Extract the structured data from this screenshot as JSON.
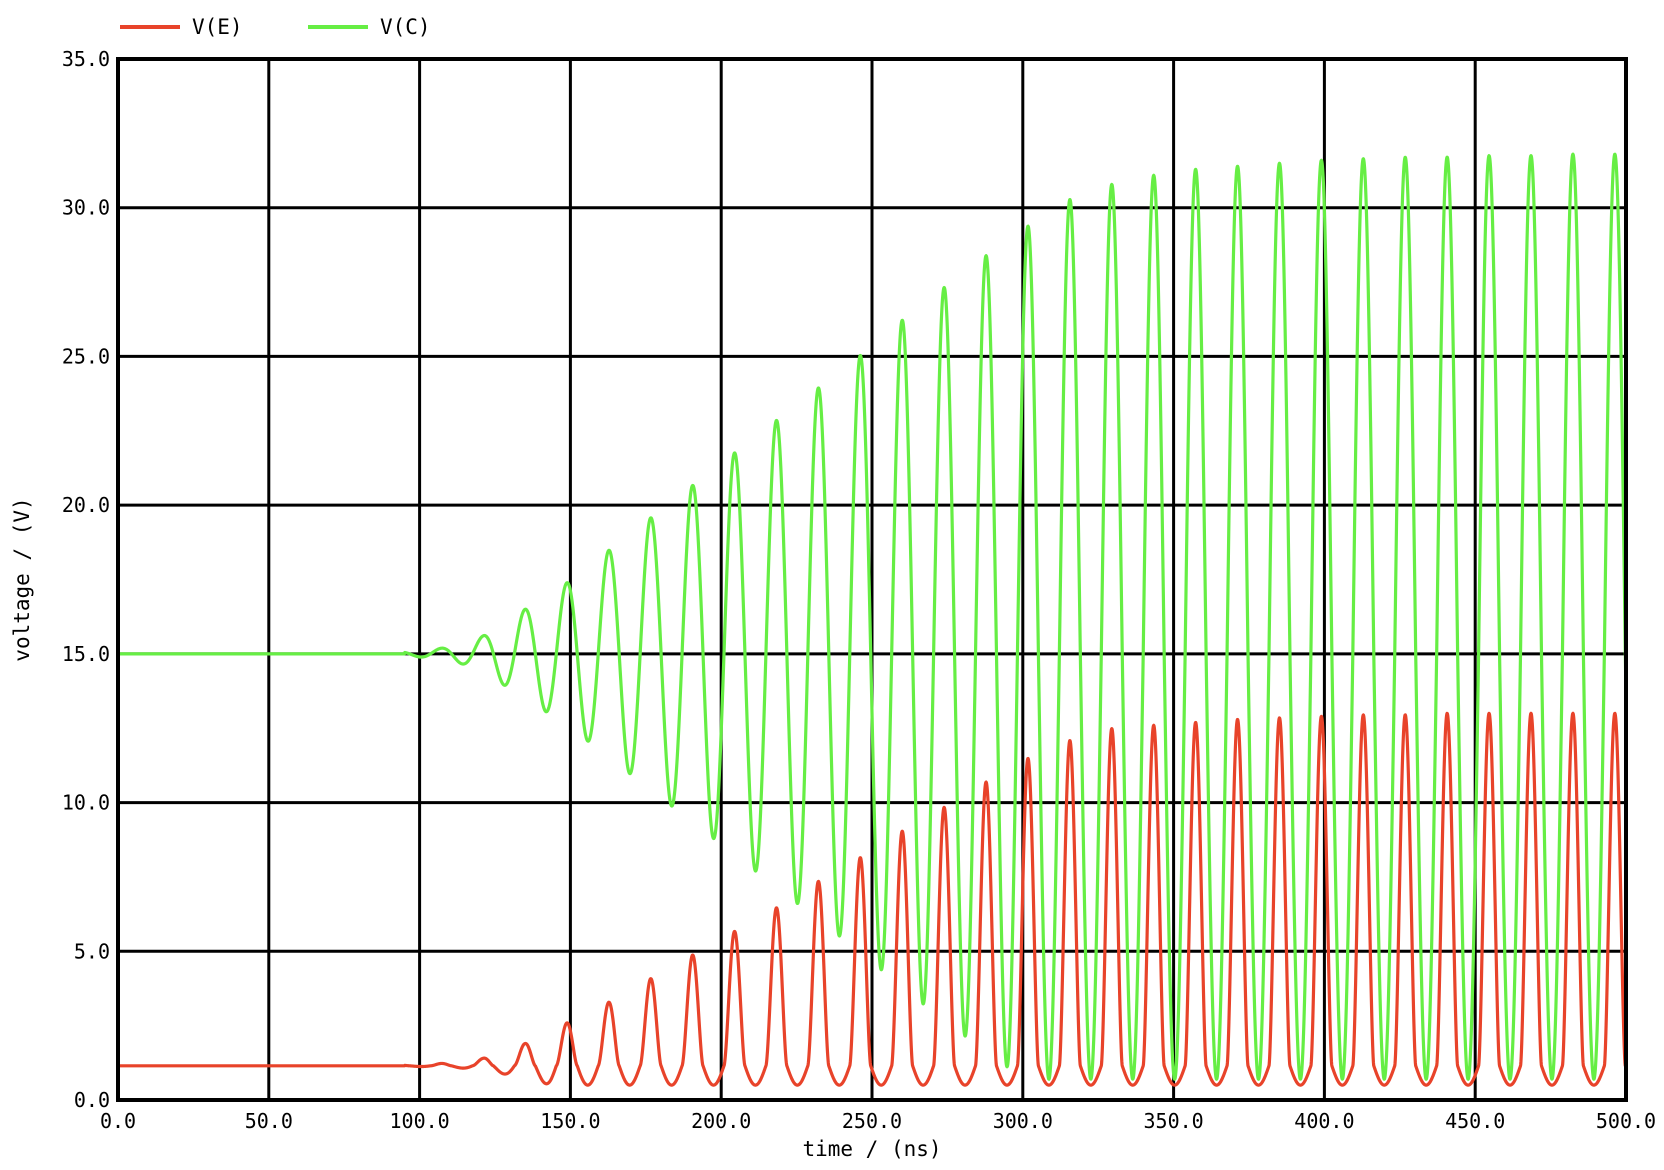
{
  "chart_data": {
    "type": "line",
    "title": "",
    "xlabel": "time / (ns)",
    "ylabel": "voltage / (V)",
    "xlim": [
      0,
      500
    ],
    "ylim": [
      0,
      35
    ],
    "grid": true,
    "legend": "top-left",
    "x_ticks": [
      "0.0",
      "50.0",
      "100.0",
      "150.0",
      "200.0",
      "250.0",
      "300.0",
      "350.0",
      "400.0",
      "450.0",
      "500.0"
    ],
    "y_ticks": [
      "0.0",
      "5.0",
      "10.0",
      "15.0",
      "20.0",
      "25.0",
      "30.0",
      "35.0"
    ],
    "oscillation": {
      "onset_ns": 95,
      "period_ns": 13.9,
      "growth_time_constant_ns": 90
    },
    "series": [
      {
        "name": "V(E)",
        "color": "#e8432a",
        "baseline_v": 1.15,
        "min_v": 0.5,
        "max_v": 13.0,
        "peaks": [
          {
            "x": 121,
            "y": 1.4
          },
          {
            "x": 135,
            "y": 1.9
          },
          {
            "x": 149,
            "y": 2.6
          },
          {
            "x": 163,
            "y": 3.3
          },
          {
            "x": 177,
            "y": 4.1
          },
          {
            "x": 191,
            "y": 4.9
          },
          {
            "x": 205,
            "y": 5.7
          },
          {
            "x": 219,
            "y": 6.5
          },
          {
            "x": 233,
            "y": 7.4
          },
          {
            "x": 247,
            "y": 8.2
          },
          {
            "x": 261,
            "y": 9.1
          },
          {
            "x": 275,
            "y": 9.9
          },
          {
            "x": 288,
            "y": 10.7
          },
          {
            "x": 302,
            "y": 11.5
          },
          {
            "x": 316,
            "y": 12.1
          },
          {
            "x": 330,
            "y": 12.5
          },
          {
            "x": 344,
            "y": 12.6
          },
          {
            "x": 358,
            "y": 12.7
          },
          {
            "x": 372,
            "y": 12.8
          },
          {
            "x": 386,
            "y": 12.85
          },
          {
            "x": 400,
            "y": 12.9
          },
          {
            "x": 414,
            "y": 12.95
          },
          {
            "x": 428,
            "y": 12.95
          },
          {
            "x": 441,
            "y": 13.0
          },
          {
            "x": 455,
            "y": 13.0
          },
          {
            "x": 469,
            "y": 13.0
          },
          {
            "x": 483,
            "y": 13.0
          },
          {
            "x": 497,
            "y": 13.0
          }
        ]
      },
      {
        "name": "V(C)",
        "color": "#66ee44",
        "baseline_v": 15.0,
        "min_v": 0.7,
        "max_v": 31.8,
        "peaks": [
          {
            "x": 121,
            "y": 15.6
          },
          {
            "x": 135,
            "y": 16.5
          },
          {
            "x": 149,
            "y": 17.4
          },
          {
            "x": 163,
            "y": 18.5
          },
          {
            "x": 177,
            "y": 19.6
          },
          {
            "x": 191,
            "y": 20.7
          },
          {
            "x": 205,
            "y": 21.8
          },
          {
            "x": 219,
            "y": 22.9
          },
          {
            "x": 233,
            "y": 24.0
          },
          {
            "x": 247,
            "y": 25.1
          },
          {
            "x": 261,
            "y": 26.3
          },
          {
            "x": 275,
            "y": 27.4
          },
          {
            "x": 288,
            "y": 28.4
          },
          {
            "x": 302,
            "y": 29.4
          },
          {
            "x": 316,
            "y": 30.3
          },
          {
            "x": 330,
            "y": 30.8
          },
          {
            "x": 344,
            "y": 31.1
          },
          {
            "x": 358,
            "y": 31.3
          },
          {
            "x": 372,
            "y": 31.4
          },
          {
            "x": 386,
            "y": 31.5
          },
          {
            "x": 400,
            "y": 31.6
          },
          {
            "x": 414,
            "y": 31.65
          },
          {
            "x": 428,
            "y": 31.7
          },
          {
            "x": 441,
            "y": 31.7
          },
          {
            "x": 455,
            "y": 31.75
          },
          {
            "x": 469,
            "y": 31.75
          },
          {
            "x": 483,
            "y": 31.8
          },
          {
            "x": 497,
            "y": 31.8
          }
        ]
      }
    ]
  }
}
